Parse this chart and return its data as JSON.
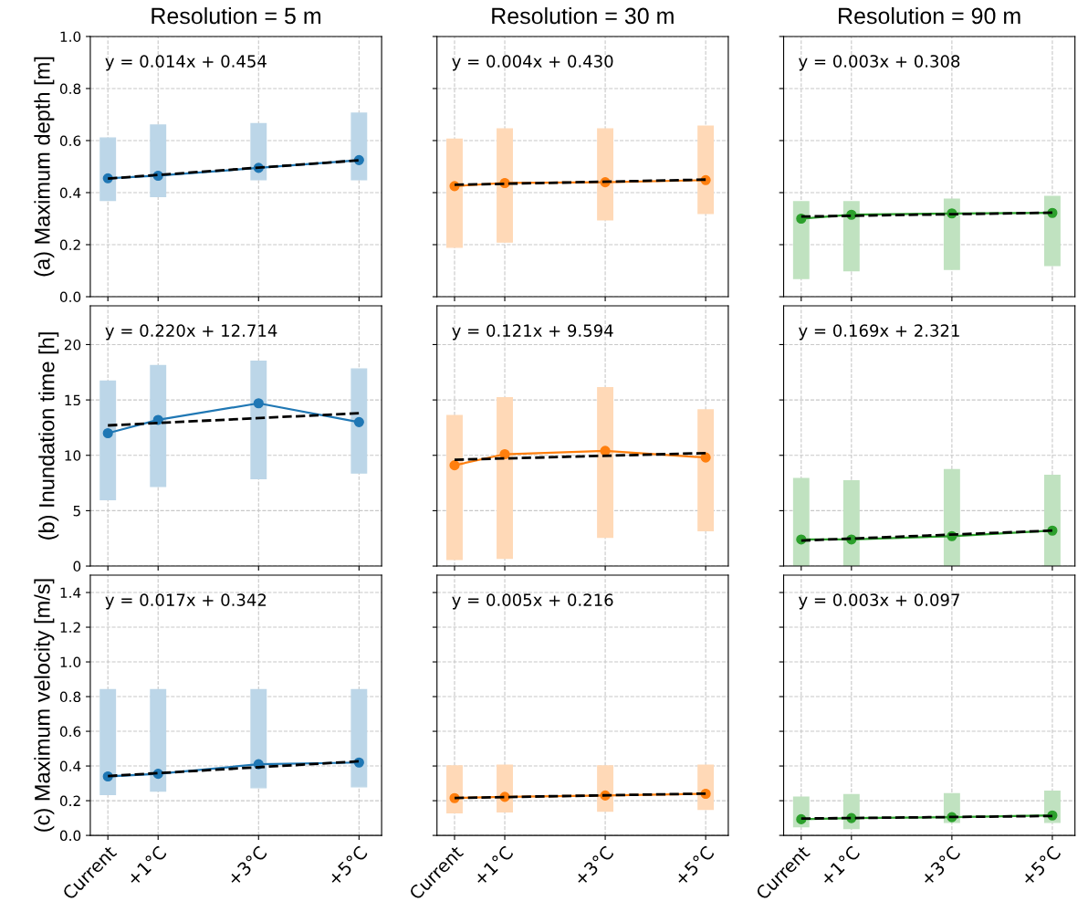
{
  "chart_data": [
    {
      "type": "line",
      "title": "Resolution = 5 m",
      "ylabel": "(a) Maximum depth [m]",
      "tick_labels": "y",
      "grid": true,
      "xlim": [
        -0.35,
        5.45
      ],
      "xticks": [
        {
          "value": 0,
          "label": null
        },
        {
          "value": 1,
          "label": null
        },
        {
          "value": 3,
          "label": null
        },
        {
          "value": 5,
          "label": null
        }
      ],
      "ylim": [
        0,
        1.0
      ],
      "yticks": [
        {
          "value": 0,
          "label": "0.0"
        },
        0.2,
        0.4,
        0.6,
        0.8,
        {
          "value": 1,
          "label": "1.0"
        }
      ],
      "annotations": [
        "y = 0.014x + 0.454"
      ],
      "series": [
        {
          "type": "bar",
          "color": "#bcd6e8",
          "x": [
            0,
            1,
            3,
            5
          ],
          "base": [
            0.37,
            0.385,
            0.45,
            0.45
          ],
          "values": [
            0.24,
            0.275,
            0.215,
            0.255
          ]
        },
        {
          "color": "#1f77b4",
          "marker": "circle",
          "x": [
            0,
            1,
            3,
            5
          ],
          "values": [
            0.455,
            0.465,
            0.495,
            0.525
          ]
        },
        {
          "color": "#000000",
          "line_style": "dashed",
          "x": [
            0,
            5
          ],
          "values": [
            0.454,
            0.524
          ]
        }
      ]
    },
    {
      "type": "line",
      "title": "Resolution = 30 m",
      "tick_labels": false,
      "grid": true,
      "xlim": [
        -0.35,
        5.45
      ],
      "xticks": [
        {
          "value": 0,
          "label": null
        },
        {
          "value": 1,
          "label": null
        },
        {
          "value": 3,
          "label": null
        },
        {
          "value": 5,
          "label": null
        }
      ],
      "ylim": [
        0,
        1.0
      ],
      "yticks": [
        {
          "value": 0,
          "label": null
        },
        {
          "value": 0.2,
          "label": null
        },
        {
          "value": 0.4,
          "label": null
        },
        {
          "value": 0.6,
          "label": null
        },
        {
          "value": 0.8,
          "label": null
        },
        {
          "value": 1,
          "label": null
        }
      ],
      "annotations": [
        "y = 0.004x + 0.430"
      ],
      "series": [
        {
          "type": "bar",
          "color": "#ffd9b7",
          "x": [
            0,
            1,
            3,
            5
          ],
          "base": [
            0.19,
            0.21,
            0.295,
            0.32
          ],
          "values": [
            0.415,
            0.435,
            0.35,
            0.335
          ]
        },
        {
          "color": "#ff7f0e",
          "marker": "circle",
          "x": [
            0,
            1,
            3,
            5
          ],
          "values": [
            0.425,
            0.437,
            0.44,
            0.448
          ]
        },
        {
          "color": "#000000",
          "line_style": "dashed",
          "x": [
            0,
            5
          ],
          "values": [
            0.43,
            0.45
          ]
        }
      ]
    },
    {
      "type": "line",
      "title": "Resolution = 90 m",
      "tick_labels": false,
      "grid": true,
      "xlim": [
        -0.35,
        5.45
      ],
      "xticks": [
        {
          "value": 0,
          "label": null
        },
        {
          "value": 1,
          "label": null
        },
        {
          "value": 3,
          "label": null
        },
        {
          "value": 5,
          "label": null
        }
      ],
      "ylim": [
        0,
        1.0
      ],
      "yticks": [
        {
          "value": 0,
          "label": null
        },
        {
          "value": 0.2,
          "label": null
        },
        {
          "value": 0.4,
          "label": null
        },
        {
          "value": 0.6,
          "label": null
        },
        {
          "value": 0.8,
          "label": null
        },
        {
          "value": 1,
          "label": null
        }
      ],
      "annotations": [
        "y = 0.003x + 0.308"
      ],
      "series": [
        {
          "type": "bar",
          "color": "#c0e2c0",
          "x": [
            0,
            1,
            3,
            5
          ],
          "base": [
            0.07,
            0.1,
            0.105,
            0.12
          ],
          "values": [
            0.295,
            0.265,
            0.27,
            0.265
          ]
        },
        {
          "color": "#2ca02c",
          "marker": "circle",
          "x": [
            0,
            1,
            3,
            5
          ],
          "values": [
            0.3,
            0.315,
            0.32,
            0.322
          ]
        },
        {
          "color": "#000000",
          "line_style": "dashed",
          "x": [
            0,
            5
          ],
          "values": [
            0.308,
            0.323
          ]
        }
      ]
    },
    {
      "type": "line",
      "ylabel": "(b) Inundation time [h]",
      "tick_labels": "y",
      "grid": true,
      "xlim": [
        -0.35,
        5.45
      ],
      "xticks": [
        {
          "value": 0,
          "label": null
        },
        {
          "value": 1,
          "label": null
        },
        {
          "value": 3,
          "label": null
        },
        {
          "value": 5,
          "label": null
        }
      ],
      "ylim": [
        0,
        23.5
      ],
      "yticks": [
        0,
        5,
        10,
        15,
        20
      ],
      "annotations": [
        "y = 0.220x + 12.714"
      ],
      "series": [
        {
          "type": "bar",
          "color": "#bcd6e8",
          "x": [
            0,
            1,
            3,
            5
          ],
          "base": [
            6.0,
            7.2,
            7.9,
            8.4
          ],
          "values": [
            10.7,
            10.9,
            10.6,
            9.4
          ]
        },
        {
          "color": "#1f77b4",
          "marker": "circle",
          "x": [
            0,
            1,
            3,
            5
          ],
          "values": [
            12.0,
            13.2,
            14.7,
            13.0
          ]
        },
        {
          "color": "#000000",
          "line_style": "dashed",
          "x": [
            0,
            5
          ],
          "values": [
            12.7,
            13.8
          ]
        }
      ]
    },
    {
      "type": "line",
      "tick_labels": false,
      "grid": true,
      "xlim": [
        -0.35,
        5.45
      ],
      "xticks": [
        {
          "value": 0,
          "label": null
        },
        {
          "value": 1,
          "label": null
        },
        {
          "value": 3,
          "label": null
        },
        {
          "value": 5,
          "label": null
        }
      ],
      "ylim": [
        0,
        23.5
      ],
      "yticks": [
        {
          "value": 0,
          "label": null
        },
        {
          "value": 5,
          "label": null
        },
        {
          "value": 10,
          "label": null
        },
        {
          "value": 15,
          "label": null
        },
        {
          "value": 20,
          "label": null
        }
      ],
      "annotations": [
        "y = 0.121x + 9.594"
      ],
      "series": [
        {
          "type": "bar",
          "color": "#ffd9b7",
          "x": [
            0,
            1,
            3,
            5
          ],
          "base": [
            0.6,
            0.7,
            2.6,
            3.2
          ],
          "values": [
            13.0,
            14.5,
            13.5,
            10.9
          ]
        },
        {
          "color": "#ff7f0e",
          "marker": "circle",
          "x": [
            0,
            1,
            3,
            5
          ],
          "values": [
            9.1,
            10.1,
            10.4,
            9.8
          ]
        },
        {
          "color": "#000000",
          "line_style": "dashed",
          "x": [
            0,
            5
          ],
          "values": [
            9.6,
            10.2
          ]
        }
      ]
    },
    {
      "type": "line",
      "tick_labels": false,
      "grid": true,
      "xlim": [
        -0.35,
        5.45
      ],
      "xticks": [
        {
          "value": 0,
          "label": null
        },
        {
          "value": 1,
          "label": null
        },
        {
          "value": 3,
          "label": null
        },
        {
          "value": 5,
          "label": null
        }
      ],
      "ylim": [
        0,
        23.5
      ],
      "yticks": [
        {
          "value": 0,
          "label": null
        },
        {
          "value": 5,
          "label": null
        },
        {
          "value": 10,
          "label": null
        },
        {
          "value": 15,
          "label": null
        },
        {
          "value": 20,
          "label": null
        }
      ],
      "annotations": [
        "y = 0.169x + 2.321"
      ],
      "series": [
        {
          "type": "bar",
          "color": "#c0e2c0",
          "x": [
            0,
            1,
            3,
            5
          ],
          "base": [
            0,
            0,
            0,
            0
          ],
          "values": [
            7.9,
            7.7,
            8.7,
            8.2
          ]
        },
        {
          "color": "#2ca02c",
          "marker": "circle",
          "x": [
            0,
            1,
            3,
            5
          ],
          "values": [
            2.4,
            2.4,
            2.7,
            3.2
          ]
        },
        {
          "color": "#000000",
          "line_style": "dashed",
          "x": [
            0,
            5
          ],
          "values": [
            2.3,
            3.2
          ]
        }
      ]
    },
    {
      "type": "line",
      "ylabel": "(c) Maximum velocity [m/s]",
      "grid": true,
      "xlim": [
        -0.35,
        5.45
      ],
      "xticks": [
        {
          "value": 0,
          "label": "Current"
        },
        {
          "value": 1,
          "label": "+1°C"
        },
        {
          "value": 3,
          "label": "+3°C"
        },
        {
          "value": 5,
          "label": "+5°C"
        }
      ],
      "ylim": [
        0,
        1.5
      ],
      "yticks": [
        {
          "value": 0,
          "label": "0.0"
        },
        0.2,
        0.4,
        0.6,
        0.8,
        {
          "value": 1,
          "label": "1.0"
        },
        1.2,
        1.4
      ],
      "annotations": [
        "y = 0.017x + 0.342"
      ],
      "series": [
        {
          "type": "bar",
          "color": "#bcd6e8",
          "x": [
            0,
            1,
            3,
            5
          ],
          "base": [
            0.235,
            0.255,
            0.275,
            0.28
          ],
          "values": [
            0.605,
            0.585,
            0.565,
            0.56
          ]
        },
        {
          "color": "#1f77b4",
          "marker": "circle",
          "x": [
            0,
            1,
            3,
            5
          ],
          "values": [
            0.34,
            0.355,
            0.41,
            0.42
          ]
        },
        {
          "color": "#000000",
          "line_style": "dashed",
          "x": [
            0,
            5
          ],
          "values": [
            0.342,
            0.427
          ]
        }
      ]
    },
    {
      "type": "line",
      "tick_labels": "x",
      "grid": true,
      "xlim": [
        -0.35,
        5.45
      ],
      "xticks": [
        {
          "value": 0,
          "label": "Current"
        },
        {
          "value": 1,
          "label": "+1°C"
        },
        {
          "value": 3,
          "label": "+3°C"
        },
        {
          "value": 5,
          "label": "+5°C"
        }
      ],
      "ylim": [
        0,
        1.5
      ],
      "yticks": [
        {
          "value": 0,
          "label": null
        },
        {
          "value": 0.2,
          "label": null
        },
        {
          "value": 0.4,
          "label": null
        },
        {
          "value": 0.6,
          "label": null
        },
        {
          "value": 0.8,
          "label": null
        },
        {
          "value": 1,
          "label": null
        },
        {
          "value": 1.2,
          "label": null
        },
        {
          "value": 1.4,
          "label": null
        }
      ],
      "annotations": [
        "y = 0.005x + 0.216"
      ],
      "series": [
        {
          "type": "bar",
          "color": "#ffd9b7",
          "x": [
            0,
            1,
            3,
            5
          ],
          "base": [
            0.13,
            0.135,
            0.14,
            0.15
          ],
          "values": [
            0.27,
            0.27,
            0.26,
            0.255
          ]
        },
        {
          "color": "#ff7f0e",
          "marker": "circle",
          "x": [
            0,
            1,
            3,
            5
          ],
          "values": [
            0.215,
            0.222,
            0.23,
            0.24
          ]
        },
        {
          "color": "#000000",
          "line_style": "dashed",
          "x": [
            0,
            5
          ],
          "values": [
            0.216,
            0.241
          ]
        }
      ]
    },
    {
      "type": "line",
      "tick_labels": "x",
      "grid": true,
      "xlim": [
        -0.35,
        5.45
      ],
      "xticks": [
        {
          "value": 0,
          "label": "Current"
        },
        {
          "value": 1,
          "label": "+1°C"
        },
        {
          "value": 3,
          "label": "+3°C"
        },
        {
          "value": 5,
          "label": "+5°C"
        }
      ],
      "ylim": [
        0,
        1.5
      ],
      "yticks": [
        {
          "value": 0,
          "label": null
        },
        {
          "value": 0.2,
          "label": null
        },
        {
          "value": 0.4,
          "label": null
        },
        {
          "value": 0.6,
          "label": null
        },
        {
          "value": 0.8,
          "label": null
        },
        {
          "value": 1,
          "label": null
        },
        {
          "value": 1.2,
          "label": null
        },
        {
          "value": 1.4,
          "label": null
        }
      ],
      "annotations": [
        "y = 0.003x + 0.097"
      ],
      "series": [
        {
          "type": "bar",
          "color": "#c0e2c0",
          "x": [
            0,
            1,
            3,
            5
          ],
          "base": [
            0.05,
            0.04,
            0.075,
            0.075
          ],
          "values": [
            0.17,
            0.195,
            0.165,
            0.18
          ]
        },
        {
          "color": "#2ca02c",
          "marker": "circle",
          "x": [
            0,
            1,
            3,
            5
          ],
          "values": [
            0.093,
            0.1,
            0.105,
            0.115
          ]
        },
        {
          "color": "#000000",
          "line_style": "dashed",
          "x": [
            0,
            5
          ],
          "values": [
            0.097,
            0.112
          ]
        }
      ]
    }
  ]
}
